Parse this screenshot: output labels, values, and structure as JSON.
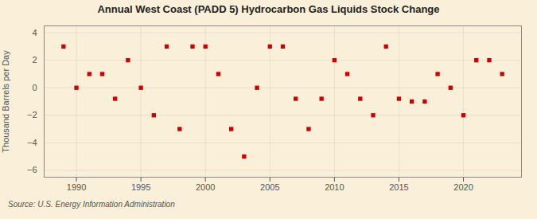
{
  "chart_data": {
    "type": "scatter",
    "title": "Annual West Coast (PADD 5) Hydrocarbon Gas Liquids Stock Change",
    "ylabel": "Thousand Barrels per Day",
    "annotations": [
      "Source: U.S. Energy Information Administration"
    ],
    "x": [
      1989,
      1990,
      1991,
      1992,
      1993,
      1994,
      1995,
      1996,
      1997,
      1998,
      1999,
      2000,
      2001,
      2002,
      2003,
      2004,
      2005,
      2006,
      2007,
      2008,
      2009,
      2010,
      2011,
      2012,
      2013,
      2014,
      2015,
      2016,
      2017,
      2018,
      2019,
      2020,
      2021,
      2022,
      2023
    ],
    "values": [
      3.0,
      0.0,
      1.0,
      1.0,
      -0.8,
      2.0,
      0.0,
      -2.0,
      3.0,
      -3.0,
      3.0,
      3.0,
      1.0,
      -3.0,
      -5.0,
      0.0,
      3.0,
      3.0,
      -0.8,
      -3.0,
      -0.8,
      2.0,
      1.0,
      -0.8,
      -2.0,
      3.0,
      -0.8,
      -1.0,
      -1.0,
      1.0,
      0.0,
      -2.0,
      2.0,
      2.0,
      1.0
    ],
    "color": "#cc0000",
    "marker": "square",
    "xlim": [
      1987.5,
      2024.5
    ],
    "xticks": [
      1990,
      1995,
      2000,
      2005,
      2010,
      2015,
      2020
    ],
    "ylim": [
      -6.5,
      4.5
    ],
    "yticks": [
      -6,
      -4,
      -2,
      0,
      2,
      4
    ],
    "grid": true
  }
}
